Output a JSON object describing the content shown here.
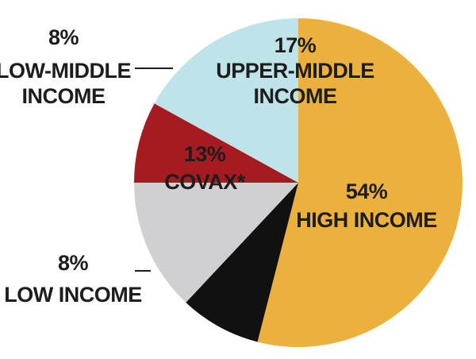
{
  "chart_data": {
    "type": "pie",
    "title": "",
    "start_angle_deg": 90,
    "direction": "clockwise",
    "slices": [
      {
        "label": "HIGH INCOME",
        "percent_label": "54%",
        "value": 54,
        "color": "#ECB13C"
      },
      {
        "label": "LOW INCOME",
        "percent_label": "8%",
        "value": 8,
        "color": "#111111"
      },
      {
        "label": "COVAX*",
        "percent_label": "13%",
        "value": 13,
        "color": "#D0D0D2"
      },
      {
        "label": "LOW-MIDDLE INCOME",
        "percent_label": "8%",
        "value": 8,
        "color": "#A51B21"
      },
      {
        "label": "UPPER-MIDDLE INCOME",
        "percent_label": "17%",
        "value": 17,
        "color": "#BEE4EA"
      }
    ]
  }
}
